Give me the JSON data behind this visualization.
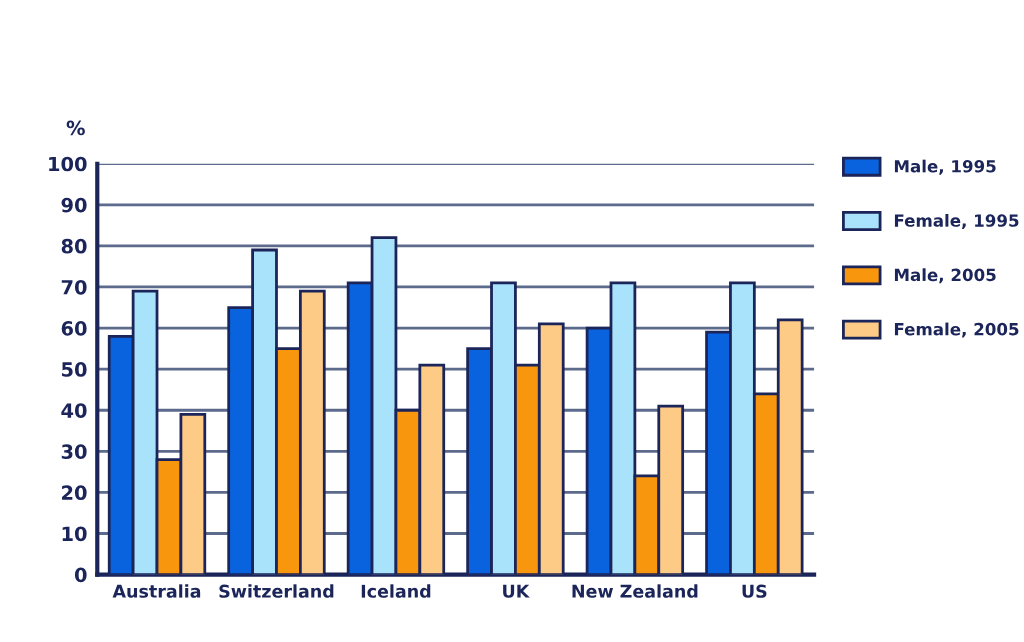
{
  "chart_data": {
    "type": "bar",
    "ylabel": "%",
    "categories": [
      "Australia",
      "Switzerland",
      "Iceland",
      "UK",
      "New Zealand",
      "US"
    ],
    "series": [
      {
        "name": "Male, 1995",
        "color": "#0a63de",
        "values": [
          58,
          65,
          71,
          55,
          60,
          59
        ]
      },
      {
        "name": "Female, 1995",
        "color": "#a9e3fb",
        "values": [
          69,
          79,
          82,
          71,
          71,
          71
        ]
      },
      {
        "name": "Male, 2005",
        "color": "#f8960e",
        "values": [
          28,
          55,
          40,
          51,
          24,
          44
        ]
      },
      {
        "name": "Female, 2005",
        "color": "#fdcb85",
        "values": [
          39,
          69,
          51,
          61,
          41,
          62
        ]
      }
    ],
    "ylim": [
      0,
      100
    ],
    "yticks": [
      0,
      10,
      20,
      30,
      40,
      50,
      60,
      70,
      80,
      90,
      100
    ],
    "grid": "y",
    "legend": "right"
  }
}
